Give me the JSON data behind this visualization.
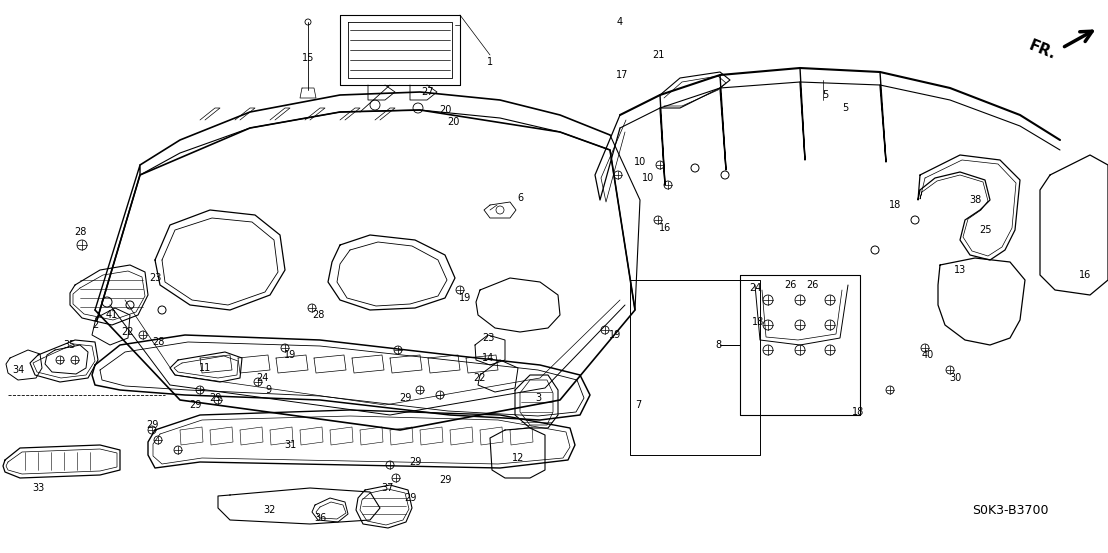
{
  "part_number": "S0K3-B3700",
  "direction_label": "FR.",
  "bg_color": "#ffffff",
  "fg_color": "#000000",
  "fig_width": 11.08,
  "fig_height": 5.53,
  "dpi": 100
}
